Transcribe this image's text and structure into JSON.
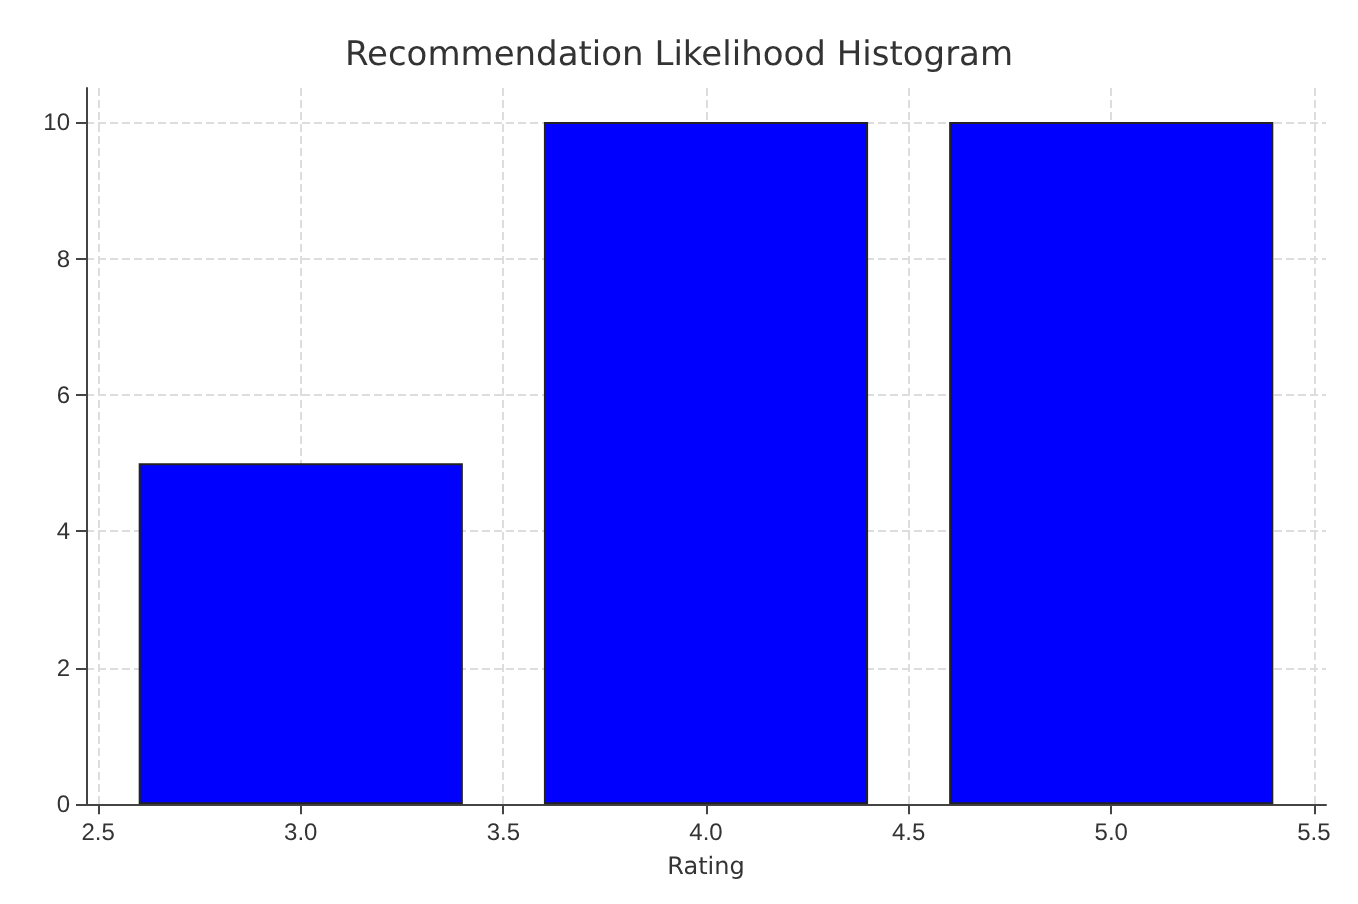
{
  "chart_data": {
    "type": "bar",
    "title": "Recommendation Likelihood Histogram",
    "xlabel": "Rating",
    "x": [
      3,
      4,
      5
    ],
    "values": [
      5,
      10,
      10
    ],
    "color": "#0000ff",
    "xlim": [
      2.47,
      5.53
    ],
    "xticks": [
      2.5,
      {
        "value": 3,
        "label": "3.0"
      },
      3.5,
      {
        "value": 4,
        "label": "4.0"
      },
      4.5,
      {
        "value": 5,
        "label": "5.0"
      },
      5.5
    ],
    "ylim": [
      0,
      10.5
    ],
    "yticks": [
      0,
      2,
      4,
      6,
      8,
      10
    ],
    "grid": true
  }
}
